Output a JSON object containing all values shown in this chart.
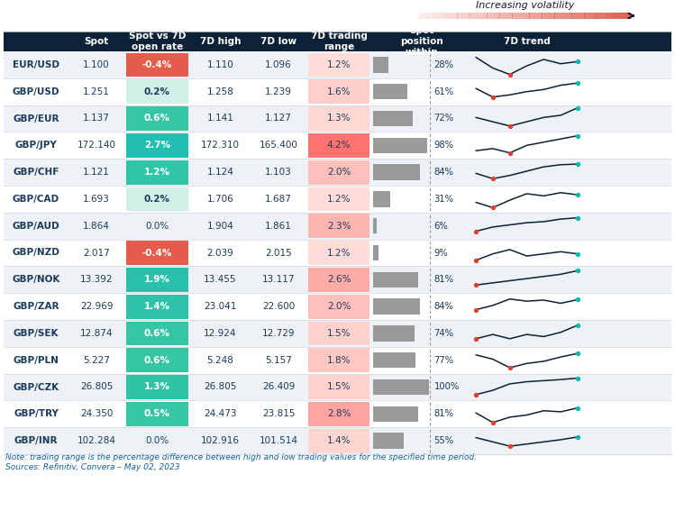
{
  "header_bg": "#0d2137",
  "currencies": [
    "EUR/USD",
    "GBP/USD",
    "GBP/EUR",
    "GBP/JPY",
    "GBP/CHF",
    "GBP/CAD",
    "GBP/AUD",
    "GBP/NZD",
    "GBP/NOK",
    "GBP/ZAR",
    "GBP/SEK",
    "GBP/PLN",
    "GBP/CZK",
    "GBP/TRY",
    "GBP/INR"
  ],
  "spot": [
    "1.100",
    "1.251",
    "1.137",
    "172.140",
    "1.121",
    "1.693",
    "1.864",
    "2.017",
    "13.392",
    "22.969",
    "12.874",
    "5.227",
    "26.805",
    "24.350",
    "102.284"
  ],
  "vs7d": [
    "-0.4%",
    "0.2%",
    "0.6%",
    "2.7%",
    "1.2%",
    "0.2%",
    "0.0%",
    "-0.4%",
    "1.9%",
    "1.4%",
    "0.6%",
    "0.6%",
    "1.3%",
    "0.5%",
    "0.0%"
  ],
  "vs7d_vals": [
    -0.4,
    0.2,
    0.6,
    2.7,
    1.2,
    0.2,
    0.0,
    -0.4,
    1.9,
    1.4,
    0.6,
    0.6,
    1.3,
    0.5,
    0.0
  ],
  "high7d": [
    "1.110",
    "1.258",
    "1.141",
    "172.310",
    "1.124",
    "1.706",
    "1.904",
    "2.039",
    "13.455",
    "23.041",
    "12.924",
    "5.248",
    "26.805",
    "24.473",
    "102.916"
  ],
  "low7d": [
    "1.096",
    "1.239",
    "1.127",
    "165.400",
    "1.103",
    "1.687",
    "1.861",
    "2.015",
    "13.117",
    "22.600",
    "12.729",
    "5.157",
    "26.409",
    "23.815",
    "101.514"
  ],
  "trading_range": [
    "1.2%",
    "1.6%",
    "1.3%",
    "4.2%",
    "2.0%",
    "1.2%",
    "2.3%",
    "1.2%",
    "2.6%",
    "2.0%",
    "1.5%",
    "1.8%",
    "1.5%",
    "2.8%",
    "1.4%"
  ],
  "trading_range_vals": [
    1.2,
    1.6,
    1.3,
    4.2,
    2.0,
    1.2,
    2.3,
    1.2,
    2.6,
    2.0,
    1.5,
    1.8,
    1.5,
    2.8,
    1.4
  ],
  "spot_position": [
    28,
    61,
    72,
    98,
    84,
    31,
    6,
    9,
    81,
    84,
    74,
    77,
    100,
    81,
    55
  ],
  "col_headers": [
    "Spot",
    "Spot vs 7D\nopen rate",
    "7D high",
    "7D low",
    "7D trading\nrange",
    "Spot\nposition\nwithin",
    "7D trend"
  ],
  "title_annotation": "Increasing volatility",
  "note": "Note: trading range is the percentage difference between high and low trading values for the specified time period.",
  "source": "Sources: Refinitiv, Convera – May 02, 2023",
  "sparklines": [
    [
      0.85,
      0.35,
      0.05,
      0.45,
      0.75,
      0.55,
      0.65
    ],
    [
      0.65,
      0.25,
      0.35,
      0.5,
      0.6,
      0.8,
      0.9
    ],
    [
      0.55,
      0.35,
      0.15,
      0.35,
      0.55,
      0.65,
      1.0
    ],
    [
      0.25,
      0.35,
      0.15,
      0.5,
      0.65,
      0.8,
      0.95
    ],
    [
      0.45,
      0.2,
      0.35,
      0.55,
      0.75,
      0.85,
      0.88
    ],
    [
      0.35,
      0.1,
      0.45,
      0.75,
      0.65,
      0.8,
      0.7
    ],
    [
      0.25,
      0.45,
      0.55,
      0.65,
      0.7,
      0.82,
      0.88
    ],
    [
      0.15,
      0.45,
      0.65,
      0.35,
      0.45,
      0.55,
      0.45
    ],
    [
      0.25,
      0.35,
      0.45,
      0.55,
      0.65,
      0.75,
      0.92
    ],
    [
      0.35,
      0.55,
      0.85,
      0.75,
      0.8,
      0.65,
      0.82
    ],
    [
      0.25,
      0.45,
      0.25,
      0.45,
      0.35,
      0.55,
      0.88
    ],
    [
      0.75,
      0.55,
      0.15,
      0.35,
      0.45,
      0.65,
      0.82
    ],
    [
      0.15,
      0.35,
      0.65,
      0.75,
      0.8,
      0.85,
      0.92
    ],
    [
      0.55,
      0.1,
      0.35,
      0.45,
      0.65,
      0.6,
      0.78
    ],
    [
      0.65,
      0.45,
      0.25,
      0.35,
      0.45,
      0.55,
      0.68
    ]
  ]
}
